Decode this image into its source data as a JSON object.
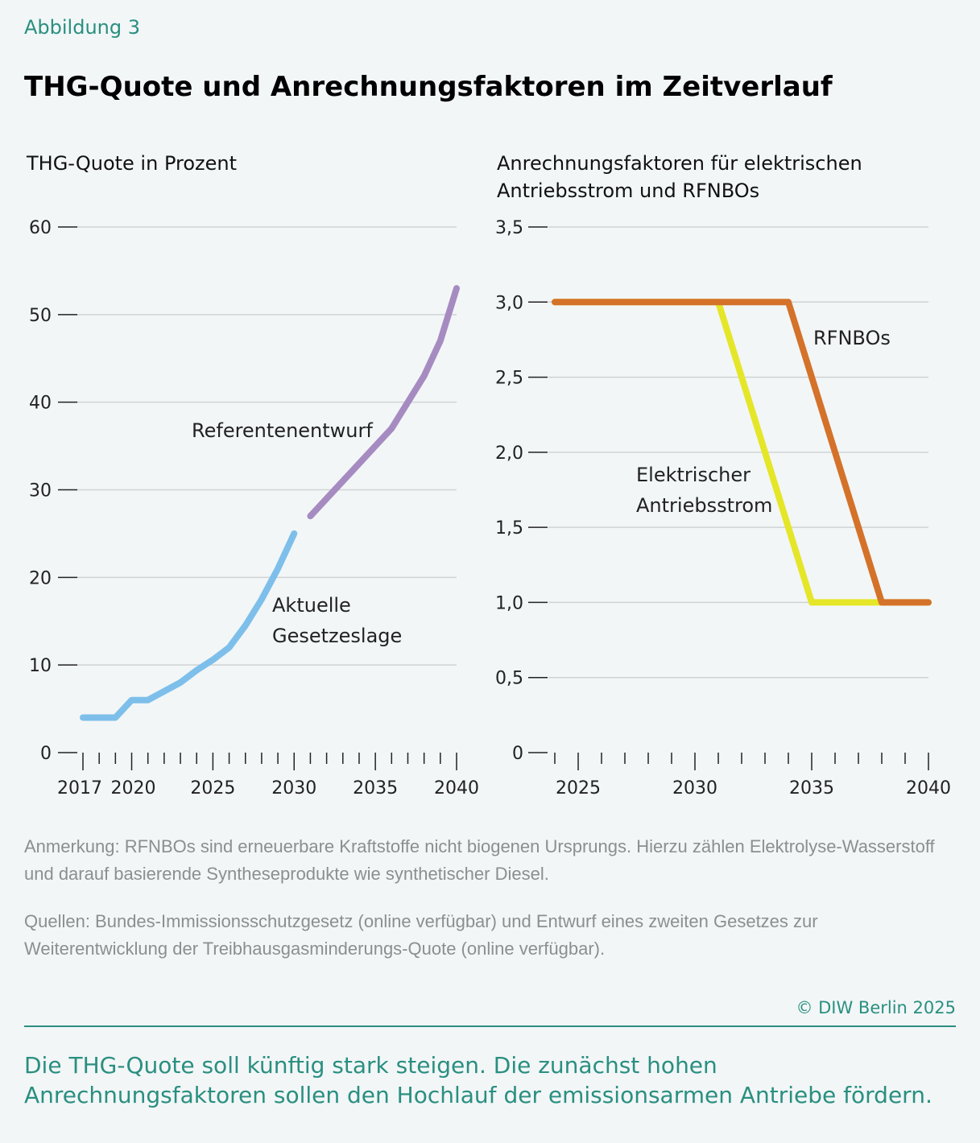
{
  "figure_label": "Abbildung 3",
  "title": "THG-Quote und Anrechnungsfaktoren im Zeitverlauf",
  "chart_data": [
    {
      "type": "line",
      "title": "THG-Quote in Prozent",
      "ylim": [
        0,
        60
      ],
      "yticks": [
        0,
        10,
        20,
        30,
        40,
        50,
        60
      ],
      "ytick_labels": [
        "0",
        "10",
        "20",
        "30",
        "40",
        "50",
        "60"
      ],
      "xlim": [
        2017,
        2040
      ],
      "xtick_labels": [
        "2017",
        "2020",
        "2025",
        "2030",
        "2035",
        "2040"
      ],
      "xticks": [
        2017,
        2020,
        2025,
        2030,
        2035,
        2040
      ],
      "grid": true,
      "series": [
        {
          "name": "Aktuelle Gesetzeslage",
          "label_lines": [
            "Aktuelle",
            "Gesetzeslage"
          ],
          "color": "#7dbfea",
          "x": [
            2017,
            2018,
            2019,
            2020,
            2021,
            2022,
            2023,
            2024,
            2025,
            2026,
            2027,
            2028,
            2029,
            2030
          ],
          "y": [
            4,
            4,
            4,
            6,
            6,
            7,
            8,
            9.4,
            10.6,
            12,
            14.5,
            17.5,
            21,
            25
          ]
        },
        {
          "name": "Referentenentwurf",
          "label_lines": [
            "Referentenentwurf"
          ],
          "color": "#a68bc1",
          "x": [
            2031,
            2032,
            2033,
            2034,
            2035,
            2036,
            2037,
            2038,
            2039,
            2040
          ],
          "y": [
            27,
            29,
            31,
            33,
            35,
            37,
            40,
            43,
            47,
            53
          ]
        }
      ]
    },
    {
      "type": "line",
      "title": "Anrechnungsfaktoren für elektrischen Antriebsstrom und RFNBOs",
      "title_lines": [
        "Anrechnungsfaktoren für elektrischen",
        "Antriebsstrom und RFNBOs"
      ],
      "ylim": [
        0,
        3.5
      ],
      "yticks": [
        0,
        0.5,
        1,
        1.5,
        2,
        2.5,
        3,
        3.5
      ],
      "ytick_labels": [
        "0",
        "0,5",
        "1,0",
        "1,5",
        "2,0",
        "2,5",
        "3,0",
        "3,5"
      ],
      "xlim": [
        2024,
        2040
      ],
      "xticks": [
        2025,
        2030,
        2035,
        2040
      ],
      "xtick_labels": [
        "2025",
        "2030",
        "2035",
        "2040"
      ],
      "grid": true,
      "series": [
        {
          "name": "Elektrischer Antriebsstrom",
          "label_lines": [
            "Elektrischer",
            "Antriebsstrom"
          ],
          "color": "#e5e627",
          "x": [
            2024,
            2031,
            2035,
            2040
          ],
          "y": [
            3,
            3,
            1,
            1
          ]
        },
        {
          "name": "RFNBOs",
          "label_lines": [
            "RFNBOs"
          ],
          "color": "#d4722a",
          "x": [
            2024,
            2034,
            2035,
            2037,
            2038,
            2040
          ],
          "y": [
            3,
            3,
            2.5,
            1.5,
            1,
            1
          ]
        }
      ]
    }
  ],
  "note": "Anmerkung: RFNBOs sind erneuerbare Kraftstoffe nicht biogenen Ursprungs. Hierzu zählen Elektrolyse-Wasserstoff und darauf basierende Syntheseprodukte wie synthetischer Diesel.",
  "sources": "Quellen: Bundes-Immissionsschutzgesetz (online verfügbar) und Entwurf eines zweiten Gesetzes zur Weiterentwicklung der Treibhausgasminderungs-Quote (online verfügbar).",
  "copyright": "© DIW Berlin 2025",
  "summary": "Die THG-Quote soll künftig stark steigen. Die zunächst hohen Anrechnungsfaktoren sollen den Hochlauf der emissionsarmen Antriebe fördern."
}
